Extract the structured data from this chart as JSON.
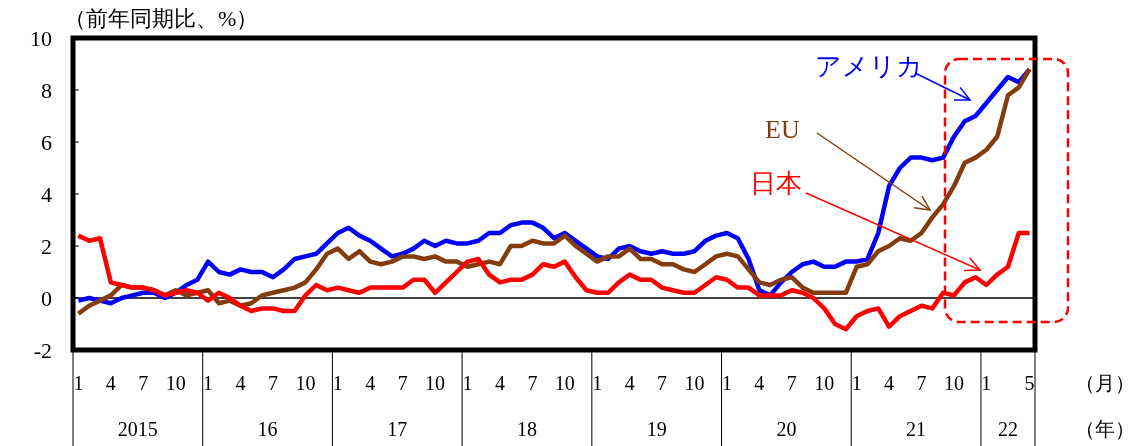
{
  "chart_data": {
    "type": "line",
    "ylabel": "（前年同期比、%）",
    "xlabel": "（月）",
    "categories": [
      "1",
      null,
      null,
      "4",
      null,
      null,
      "7",
      null,
      null,
      "10",
      null,
      null,
      "1",
      null,
      null,
      "4",
      null,
      null,
      "7",
      null,
      null,
      "10",
      null,
      null,
      "1",
      null,
      null,
      "4",
      null,
      null,
      "7",
      null,
      null,
      "10",
      null,
      null,
      "1",
      null,
      null,
      "4",
      null,
      null,
      "7",
      null,
      null,
      "10",
      null,
      null,
      "1",
      null,
      null,
      "4",
      null,
      null,
      "7",
      null,
      null,
      "10",
      null,
      null,
      "1",
      null,
      null,
      "4",
      null,
      null,
      "7",
      null,
      null,
      "10",
      null,
      null,
      "1",
      null,
      null,
      "4",
      null,
      null,
      "7",
      null,
      null,
      "10",
      null,
      null,
      "1",
      null,
      null,
      null,
      "5"
    ],
    "series": [
      {
        "name": "アメリカ",
        "color": "#0000ff",
        "values": [
          -0.1,
          0,
          -0.1,
          -0.2,
          0,
          0.1,
          0.2,
          0.2,
          0,
          0.2,
          0.5,
          0.7,
          1.4,
          1.0,
          0.9,
          1.1,
          1.0,
          1.0,
          0.8,
          1.1,
          1.5,
          1.6,
          1.7,
          2.1,
          2.5,
          2.7,
          2.4,
          2.2,
          1.9,
          1.6,
          1.7,
          1.9,
          2.2,
          2.0,
          2.2,
          2.1,
          2.1,
          2.2,
          2.5,
          2.5,
          2.8,
          2.9,
          2.9,
          2.7,
          2.3,
          2.5,
          2.2,
          1.9,
          1.6,
          1.5,
          1.9,
          2.0,
          1.8,
          1.7,
          1.8,
          1.7,
          1.7,
          1.8,
          2.2,
          2.4,
          2.5,
          2.3,
          1.5,
          0.3,
          0.1,
          0.6,
          1.0,
          1.3,
          1.4,
          1.2,
          1.2,
          1.4,
          1.4,
          1.5,
          2.5,
          4.3,
          5.0,
          5.4,
          5.4,
          5.3,
          5.4,
          6.2,
          6.8,
          7.0,
          7.5,
          8.0,
          8.5,
          8.3,
          8.8
        ]
      },
      {
        "name": "EU",
        "color": "#843c0c",
        "values": [
          -0.6,
          -0.3,
          -0.1,
          0.1,
          0.5,
          0.4,
          0.4,
          0.3,
          0.1,
          0.3,
          0.1,
          0.2,
          0.3,
          -0.2,
          -0.1,
          -0.3,
          -0.2,
          0.1,
          0.2,
          0.3,
          0.4,
          0.6,
          1.1,
          1.7,
          1.9,
          1.5,
          1.8,
          1.4,
          1.3,
          1.4,
          1.6,
          1.6,
          1.5,
          1.6,
          1.4,
          1.4,
          1.2,
          1.3,
          1.4,
          1.3,
          2.0,
          2.0,
          2.2,
          2.1,
          2.1,
          2.4,
          2.0,
          1.7,
          1.4,
          1.6,
          1.6,
          1.9,
          1.5,
          1.5,
          1.3,
          1.3,
          1.1,
          1.0,
          1.3,
          1.6,
          1.7,
          1.6,
          1.1,
          0.6,
          0.5,
          0.7,
          0.8,
          0.4,
          0.2,
          0.2,
          0.2,
          0.2,
          1.2,
          1.3,
          1.8,
          2.0,
          2.3,
          2.2,
          2.5,
          3.1,
          3.6,
          4.3,
          5.2,
          5.4,
          5.7,
          6.2,
          7.8,
          8.1,
          8.8
        ]
      },
      {
        "name": "日本",
        "color": "#ff0000",
        "values": [
          2.4,
          2.2,
          2.3,
          0.6,
          0.5,
          0.4,
          0.4,
          0.3,
          0.1,
          0.2,
          0.3,
          0.2,
          -0.1,
          0.2,
          0,
          -0.3,
          -0.5,
          -0.4,
          -0.4,
          -0.5,
          -0.5,
          0.1,
          0.5,
          0.3,
          0.4,
          0.3,
          0.2,
          0.4,
          0.4,
          0.4,
          0.4,
          0.7,
          0.7,
          0.2,
          0.6,
          1.0,
          1.4,
          1.5,
          0.9,
          0.6,
          0.7,
          0.7,
          0.9,
          1.3,
          1.2,
          1.4,
          0.8,
          0.3,
          0.2,
          0.2,
          0.6,
          0.9,
          0.7,
          0.7,
          0.4,
          0.3,
          0.2,
          0.2,
          0.5,
          0.8,
          0.7,
          0.4,
          0.4,
          0.1,
          0.1,
          0.1,
          0.3,
          0.2,
          0,
          -0.4,
          -1.0,
          -1.2,
          -0.7,
          -0.5,
          -0.4,
          -1.1,
          -0.7,
          -0.5,
          -0.3,
          -0.4,
          0.2,
          0.1,
          0.6,
          0.8,
          0.5,
          0.9,
          1.2,
          2.5,
          2.5
        ]
      }
    ],
    "ylim": [
      -2,
      10
    ],
    "yticks": [
      -2,
      0,
      2,
      4,
      6,
      8,
      10
    ],
    "ref_lines": [
      {
        "axis": "y",
        "value": 0,
        "color": "#000000"
      }
    ],
    "annotations": [
      "2015",
      "16",
      "17",
      "18",
      "19",
      "20",
      "21",
      "22",
      "（年）"
    ]
  }
}
